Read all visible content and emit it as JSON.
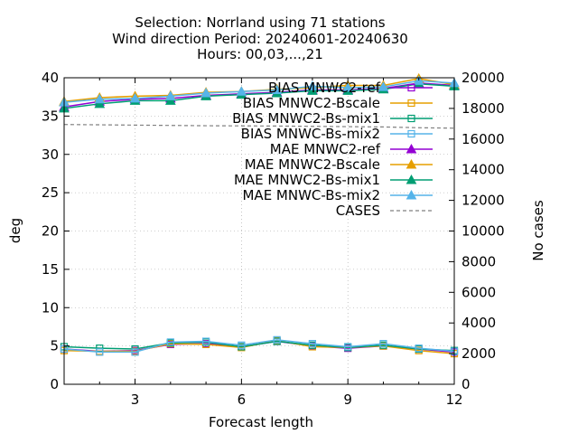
{
  "chart_data": {
    "type": "line",
    "title": [
      "Selection: Norrland using    71 stations",
      "Wind direction   Period: 20240601-20240630",
      "Hours: 00,03,...,21"
    ],
    "xlabel": "Forecast length",
    "ylabel": "deg",
    "y2label": "No cases",
    "xlim": [
      1,
      12
    ],
    "ylim": [
      0,
      40
    ],
    "y2lim": [
      0,
      20000
    ],
    "x_ticks": [
      3,
      6,
      9,
      12
    ],
    "y_ticks": [
      0,
      5,
      10,
      15,
      20,
      25,
      30,
      35,
      40
    ],
    "y2_ticks": [
      0,
      2000,
      4000,
      6000,
      8000,
      10000,
      12000,
      14000,
      16000,
      18000,
      20000
    ],
    "grid": true,
    "legend_position": "top-right",
    "x": [
      1,
      2,
      3,
      4,
      5,
      6,
      7,
      8,
      9,
      10,
      11,
      12
    ],
    "series": [
      {
        "name": "BIAS MNWC2-ref",
        "marker": "square",
        "filled": false,
        "color": "#9400d3",
        "values": [
          4.6,
          4.3,
          4.4,
          5.2,
          5.3,
          4.9,
          5.6,
          5.0,
          4.7,
          5.0,
          4.6,
          4.2
        ]
      },
      {
        "name": "BIAS MNWC2-Bscale",
        "marker": "square",
        "filled": false,
        "color": "#e69f00",
        "values": [
          4.4,
          4.3,
          4.3,
          5.3,
          5.2,
          4.8,
          5.7,
          4.9,
          4.8,
          5.0,
          4.4,
          4.0
        ]
      },
      {
        "name": "BIAS MNWC2-Bs-mix1",
        "marker": "square",
        "filled": false,
        "color": "#009e73",
        "values": [
          4.9,
          4.7,
          4.6,
          5.4,
          5.5,
          4.9,
          5.6,
          5.1,
          4.8,
          5.1,
          4.6,
          4.4
        ]
      },
      {
        "name": "BIAS MNWC-Bs-mix2",
        "marker": "square",
        "filled": false,
        "color": "#56b4e9",
        "values": [
          4.6,
          4.2,
          4.2,
          5.5,
          5.6,
          5.1,
          5.8,
          5.3,
          4.9,
          5.3,
          4.7,
          4.3
        ]
      },
      {
        "name": "MAE MNWC2-ref",
        "marker": "triangle",
        "filled": true,
        "color": "#9400d3",
        "values": [
          36.2,
          36.9,
          37.2,
          37.3,
          37.7,
          37.9,
          38.1,
          38.4,
          38.4,
          38.6,
          39.3,
          39.0
        ]
      },
      {
        "name": "MAE MNWC2-Bscale",
        "marker": "triangle",
        "filled": true,
        "color": "#e69f00",
        "values": [
          36.9,
          37.4,
          37.6,
          37.7,
          38.1,
          38.2,
          38.5,
          38.7,
          39.0,
          39.0,
          39.9,
          39.1
        ]
      },
      {
        "name": "MAE MNWC2-Bs-mix1",
        "marker": "triangle",
        "filled": true,
        "color": "#009e73",
        "values": [
          36.0,
          36.6,
          37.0,
          37.0,
          37.6,
          37.8,
          38.0,
          38.3,
          38.3,
          38.5,
          39.2,
          38.9
        ]
      },
      {
        "name": "MAE MNWC-Bs-mix2",
        "marker": "triangle",
        "filled": true,
        "color": "#56b4e9",
        "values": [
          36.8,
          37.2,
          37.3,
          37.6,
          38.0,
          38.2,
          38.4,
          38.9,
          38.7,
          38.8,
          39.6,
          39.3
        ]
      },
      {
        "name": "CASES",
        "axis": "y2",
        "dashed": true,
        "color": "#808080",
        "values": [
          16950,
          16930,
          16910,
          16890,
          16870,
          16860,
          16850,
          16830,
          16810,
          16790,
          16740,
          16710
        ]
      }
    ]
  }
}
